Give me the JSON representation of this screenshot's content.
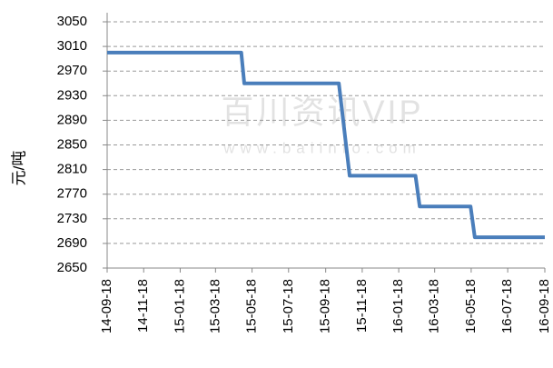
{
  "chart_data": {
    "type": "line",
    "y_label": "元/吨",
    "watermark": "百川资讯VIP",
    "watermark_url": "www.baiinfo.com",
    "x": [
      "14-09-18",
      "15-04-30",
      "15-05-05",
      "15-10-10",
      "15-10-28",
      "16-02-15",
      "16-02-22",
      "16-05-17",
      "16-05-24",
      "16-09-18"
    ],
    "series": [
      {
        "name": "price",
        "color": "#4a7ebb",
        "values": [
          3000,
          3000,
          2950,
          2950,
          2800,
          2800,
          2750,
          2750,
          2700,
          2700
        ]
      }
    ],
    "xlim": [
      "14-09-18",
      "16-09-18"
    ],
    "xticks": [
      "14-09-18",
      "14-11-18",
      "15-01-18",
      "15-03-18",
      "15-05-18",
      "15-07-18",
      "15-09-18",
      "15-11-18",
      "16-01-18",
      "16-03-18",
      "16-05-18",
      "16-07-18",
      "16-09-18"
    ],
    "ylim": [
      2650,
      3050
    ],
    "yticks": [
      2650,
      2690,
      2730,
      2770,
      2810,
      2850,
      2890,
      2930,
      2970,
      3010,
      3050
    ],
    "grid": true
  }
}
